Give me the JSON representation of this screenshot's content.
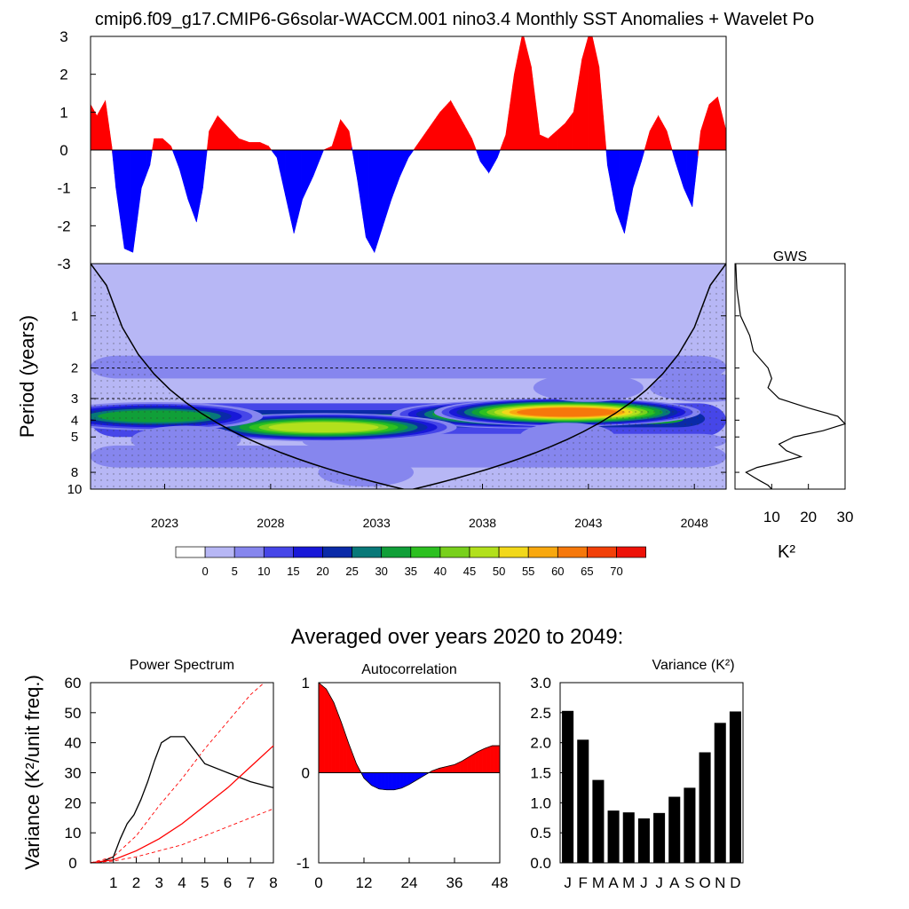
{
  "title": "cmip6.f09_g17.CMIP6-G6solar-WACCM.001 nino3.4 Monthly SST Anomalies + Wavelet Po",
  "colors": {
    "positive": "#ff0000",
    "negative": "#0000ff",
    "axis": "#000000",
    "confidence_line": "#ff0000"
  },
  "chart_data": [
    {
      "id": "anomaly",
      "type": "area",
      "title": "cmip6.f09_g17.CMIP6-G6solar-WACCM.001 nino3.4 Monthly SST Anomalies + Wavelet Po",
      "xlabel": "",
      "ylabel": "",
      "xlim": [
        2020,
        2050
      ],
      "ylim": [
        -3,
        3
      ],
      "ytick_labels": [
        "3",
        "2",
        "1",
        "0",
        "-1",
        "-2",
        "-3"
      ],
      "ytick_values": [
        3,
        2,
        1,
        0,
        -1,
        -2,
        -3
      ],
      "x": [
        2020.0,
        2020.3,
        2020.7,
        2021.0,
        2021.2,
        2021.6,
        2022.0,
        2022.4,
        2022.8,
        2023.0,
        2023.4,
        2023.8,
        2024.2,
        2024.6,
        2025.0,
        2025.3,
        2025.6,
        2026.0,
        2026.5,
        2027.0,
        2027.5,
        2028.0,
        2028.4,
        2028.8,
        2029.2,
        2029.6,
        2030.0,
        2030.5,
        2031.0,
        2031.4,
        2031.8,
        2032.2,
        2032.6,
        2033.0,
        2033.4,
        2033.8,
        2034.2,
        2034.6,
        2035.0,
        2035.5,
        2036.0,
        2036.5,
        2037.0,
        2037.5,
        2038.0,
        2038.4,
        2038.8,
        2039.2,
        2039.6,
        2040.0,
        2040.4,
        2040.8,
        2041.2,
        2041.6,
        2042.0,
        2042.4,
        2042.8,
        2043.2,
        2043.6,
        2044.0,
        2044.4,
        2044.8,
        2045.2,
        2045.6,
        2046.0,
        2046.4,
        2046.8,
        2047.2,
        2047.6,
        2048.0,
        2048.4,
        2048.8,
        2049.2,
        2049.6,
        2050.0
      ],
      "values": [
        1.2,
        0.9,
        1.3,
        0.1,
        -1.0,
        -2.6,
        -2.7,
        -1.0,
        -0.4,
        0.3,
        0.3,
        0.1,
        -0.5,
        -1.3,
        -1.9,
        -1.0,
        0.5,
        0.9,
        0.6,
        0.3,
        0.2,
        0.2,
        0.1,
        -0.2,
        -1.2,
        -2.2,
        -1.3,
        -0.7,
        0.0,
        0.1,
        0.8,
        0.5,
        -0.8,
        -2.3,
        -2.7,
        -2.0,
        -1.3,
        -0.7,
        -0.2,
        0.2,
        0.6,
        1.0,
        1.3,
        0.8,
        0.3,
        -0.3,
        -0.6,
        -0.2,
        0.4,
        2.0,
        3.1,
        2.2,
        0.4,
        0.3,
        0.5,
        0.7,
        1.0,
        2.4,
        3.2,
        2.2,
        -0.4,
        -1.6,
        -2.2,
        -1.0,
        -0.3,
        0.5,
        0.9,
        0.5,
        -0.3,
        -1.0,
        -1.5,
        0.5,
        1.2,
        1.4,
        0.5
      ]
    },
    {
      "id": "wavelet",
      "type": "heatmap",
      "title": "",
      "xlabel": "",
      "ylabel": "Period (years)",
      "xlim": [
        2020,
        2050
      ],
      "x_tick_labels": [
        "2023",
        "2028",
        "2033",
        "2038",
        "2043",
        "2048"
      ],
      "x_tick_values": [
        2023.5,
        2028.5,
        2033.5,
        2038.5,
        2043.5,
        2048.5
      ],
      "y_tick_labels": [
        "1",
        "2",
        "3",
        "4",
        "5",
        "8",
        "10"
      ],
      "y_tick_values": [
        1,
        2,
        3,
        4,
        5,
        8,
        10
      ],
      "period_range": [
        0.5,
        10
      ],
      "features": [
        {
          "center": 2040.5,
          "period": 3.7,
          "power": 58
        },
        {
          "center": 2042.5,
          "period": 3.6,
          "power": 62
        },
        {
          "center": 2031.0,
          "period": 4.4,
          "power": 45
        },
        {
          "center": 2023.0,
          "period": 3.8,
          "power": 30
        },
        {
          "center": 2043.5,
          "period": 2.6,
          "power": 8
        },
        {
          "center": 2049.0,
          "period": 2.6,
          "power": 8
        },
        {
          "center": 2024.5,
          "period": 5.2,
          "power": 8
        },
        {
          "center": 2042.5,
          "period": 5.0,
          "power": 5
        },
        {
          "center": 2033.0,
          "period": 8.0,
          "power": 5
        }
      ]
    },
    {
      "id": "colorbar",
      "type": "table",
      "levels": [
        "0",
        "5",
        "10",
        "15",
        "20",
        "25",
        "30",
        "35",
        "40",
        "45",
        "50",
        "55",
        "60",
        "65",
        "70"
      ],
      "colors": [
        "#ffffff",
        "#b7b7f5",
        "#8686ee",
        "#4646e8",
        "#1818d8",
        "#0a2aa8",
        "#087878",
        "#109f38",
        "#2cc020",
        "#78d01c",
        "#b2e01c",
        "#f2d81a",
        "#f8a80f",
        "#f6780b",
        "#f24008",
        "#ee1208"
      ]
    },
    {
      "id": "gws",
      "type": "line",
      "title": "GWS",
      "xlabel": "K²",
      "xlim": [
        0,
        30
      ],
      "x_tick_labels": [
        "10",
        "20",
        "30"
      ],
      "x_tick_values": [
        10,
        20,
        30
      ],
      "period": [
        0.5,
        0.7,
        1.0,
        1.3,
        1.6,
        2.0,
        2.3,
        2.6,
        3.0,
        3.4,
        3.8,
        4.2,
        4.6,
        5.0,
        5.5,
        6.0,
        6.5,
        7.0,
        7.5,
        8.0,
        8.5,
        9.0,
        9.5,
        10.0
      ],
      "power": [
        0.2,
        0.5,
        1.5,
        4,
        5,
        9,
        10,
        9,
        12,
        20,
        28,
        30,
        24,
        16,
        12,
        14,
        18,
        12,
        6,
        3,
        5,
        7,
        9,
        10
      ]
    },
    {
      "id": "avg_heading",
      "type": "table",
      "text": "Averaged over years 2020 to 2049:"
    },
    {
      "id": "power_spectrum",
      "type": "line",
      "title": "Power Spectrum",
      "ylabel": "Variance (K²/unit freq.)",
      "xlim": [
        0,
        8
      ],
      "ylim": [
        0,
        60
      ],
      "x_tick_labels": [
        "1",
        "2",
        "3",
        "4",
        "5",
        "6",
        "7",
        "8"
      ],
      "y_tick_labels": [
        "0",
        "10",
        "20",
        "30",
        "40",
        "50",
        "60"
      ],
      "series": [
        {
          "name": "spectrum",
          "color": "#000000",
          "x": [
            0,
            0.5,
            1.0,
            1.3,
            1.6,
            1.9,
            2.2,
            2.5,
            2.8,
            3.1,
            3.5,
            3.8,
            4.1,
            4.5,
            5.0,
            6.0,
            7.0,
            8.0
          ],
          "y": [
            0,
            0.4,
            2,
            8,
            13,
            16,
            21,
            27,
            34,
            40,
            42,
            42,
            42,
            38,
            33,
            30,
            27,
            25
          ]
        },
        {
          "name": "red noise upper",
          "color": "#ff0000",
          "dashed": true,
          "x": [
            0,
            1,
            2,
            3,
            4,
            5,
            6,
            7,
            7.6
          ],
          "y": [
            0,
            2,
            9,
            19,
            28,
            38,
            47,
            56,
            60
          ]
        },
        {
          "name": "red noise",
          "color": "#ff0000",
          "dashed": false,
          "x": [
            0,
            1,
            2,
            3,
            4,
            5,
            6,
            7,
            8
          ],
          "y": [
            0,
            1,
            4,
            8,
            13,
            19,
            25,
            32,
            39
          ]
        },
        {
          "name": "red noise lower",
          "color": "#ff0000",
          "dashed": true,
          "x": [
            0,
            1,
            2,
            3,
            4,
            5,
            6,
            7,
            8
          ],
          "y": [
            0,
            0.6,
            2,
            4,
            6,
            9,
            12,
            15,
            18
          ]
        }
      ]
    },
    {
      "id": "autocorrelation",
      "type": "area",
      "title": "Autocorrelation",
      "xlim": [
        0,
        48
      ],
      "ylim": [
        -1,
        1
      ],
      "x_tick_labels": [
        "0",
        "12",
        "24",
        "36",
        "48"
      ],
      "y_tick_labels": [
        "1",
        "0",
        "-1"
      ],
      "x": [
        0,
        2,
        4,
        6,
        8,
        10,
        12,
        14,
        16,
        18,
        20,
        22,
        24,
        26,
        28,
        30,
        32,
        34,
        36,
        38,
        40,
        42,
        44,
        46,
        48
      ],
      "values": [
        1.0,
        0.93,
        0.78,
        0.56,
        0.32,
        0.1,
        -0.06,
        -0.14,
        -0.18,
        -0.19,
        -0.19,
        -0.17,
        -0.13,
        -0.08,
        -0.03,
        0.02,
        0.05,
        0.07,
        0.09,
        0.13,
        0.18,
        0.23,
        0.27,
        0.3,
        0.3
      ]
    },
    {
      "id": "variance",
      "type": "bar",
      "title": "Variance (K²)",
      "ylim": [
        0,
        3
      ],
      "categories": [
        "J",
        "F",
        "M",
        "A",
        "M",
        "J",
        "J",
        "A",
        "S",
        "O",
        "N",
        "D"
      ],
      "values": [
        2.53,
        2.05,
        1.38,
        0.87,
        0.84,
        0.74,
        0.83,
        1.1,
        1.25,
        1.84,
        2.33,
        2.52
      ],
      "y_tick_labels": [
        "3.0",
        "2.5",
        "2.0",
        "1.5",
        "1.0",
        "0.5",
        "0.0"
      ],
      "y_tick_values": [
        3.0,
        2.5,
        2.0,
        1.5,
        1.0,
        0.5,
        0.0
      ]
    }
  ]
}
